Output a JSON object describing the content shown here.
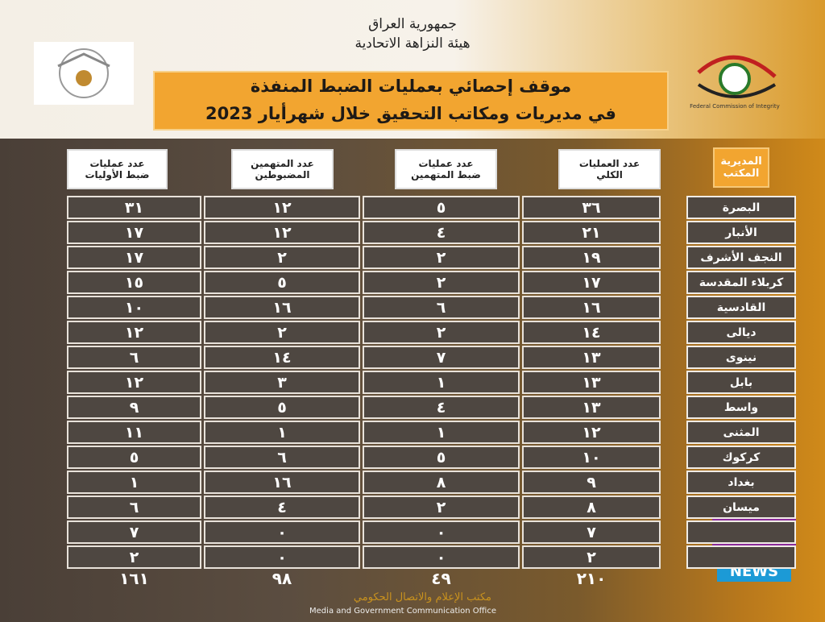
{
  "header": {
    "line1": "جمهورية العراق",
    "line2": "هيئة النزاهة الاتحادية"
  },
  "logo_caption": "Federal Commission of Integrity",
  "title": {
    "line1": "موقف إحصائي بعمليات الضبط المنفذة",
    "line2": "في مديريات ومكاتب التحقيق خلال شهرأيار 2023"
  },
  "table": {
    "headers": [
      [
        "المديرية",
        "المكتب"
      ],
      [
        "عدد العمليات",
        "الكلي"
      ],
      [
        "عدد عمليات",
        "ضبط المتهمين"
      ],
      [
        "عدد المتهمين",
        "المضبوطين"
      ],
      [
        "عدد عمليات",
        "ضبط الأوليات"
      ]
    ],
    "rows": [
      [
        "البصرة",
        "٣٦",
        "٥",
        "١٢",
        "٣١"
      ],
      [
        "الأنبار",
        "٢١",
        "٤",
        "١٢",
        "١٧"
      ],
      [
        "النجف الأشرف",
        "١٩",
        "٢",
        "٢",
        "١٧"
      ],
      [
        "كربلاء المقدسة",
        "١٧",
        "٢",
        "٥",
        "١٥"
      ],
      [
        "القادسية",
        "١٦",
        "٦",
        "١٦",
        "١٠"
      ],
      [
        "ديالى",
        "١٤",
        "٢",
        "٢",
        "١٢"
      ],
      [
        "نينوى",
        "١٣",
        "٧",
        "١٤",
        "٦"
      ],
      [
        "بابل",
        "١٣",
        "١",
        "٣",
        "١٢"
      ],
      [
        "واسط",
        "١٣",
        "٤",
        "٥",
        "٩"
      ],
      [
        "المثنى",
        "١٢",
        "١",
        "١",
        "١١"
      ],
      [
        "كركوك",
        "١٠",
        "٥",
        "٦",
        "٥"
      ],
      [
        "بغداد",
        "٩",
        "٨",
        "١٦",
        "١"
      ],
      [
        "ميسان",
        "٨",
        "٢",
        "٤",
        "٦"
      ],
      [
        null,
        "٧",
        "٠",
        "٠",
        "٧"
      ],
      [
        null,
        "٢",
        "٠",
        "٠",
        "٢"
      ]
    ],
    "totals": [
      "٢١٠",
      "٤٩",
      "٩٨",
      "١٦١"
    ]
  },
  "footer": {
    "arabic": "مكتب الإعلام والاتصال الحكومي",
    "english": "Media and Government Communication Office"
  },
  "watermark": "NEWS"
}
